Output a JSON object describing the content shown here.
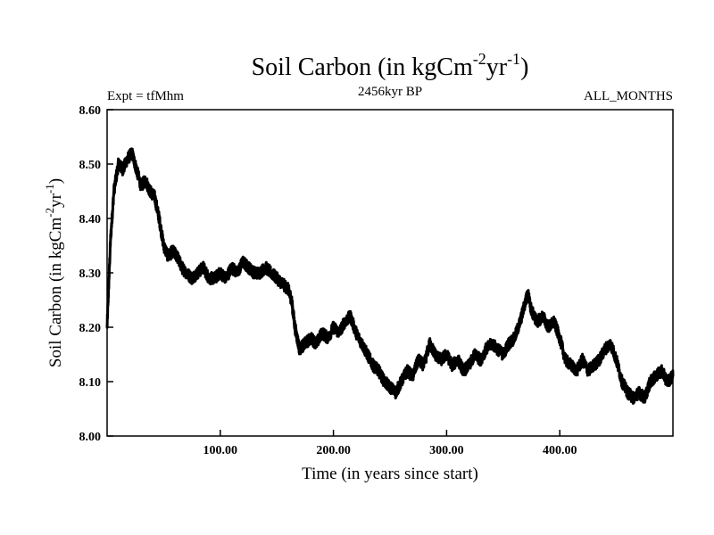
{
  "chart_data": {
    "type": "line",
    "title": {
      "main": "Soil Carbon (in kgCm",
      "exp1": "-2",
      "mid": "yr",
      "exp2": "-1",
      "end": ")"
    },
    "subtitle_left": "Expt = tfMhm",
    "subtitle_center": "2456kyr BP",
    "subtitle_right": "ALL_MONTHS",
    "xlabel": "Time (in years since start)",
    "ylabel": {
      "main": "Soil Carbon (in kgCm",
      "exp1": "-2",
      "mid": "yr",
      "exp2": "-1",
      "end": ")"
    },
    "xlim": [
      0,
      500
    ],
    "ylim": [
      8.0,
      8.6
    ],
    "x_ticks": [
      100,
      200,
      300,
      400
    ],
    "x_tick_labels": [
      "100.00",
      "200.00",
      "300.00",
      "400.00"
    ],
    "y_ticks": [
      8.0,
      8.1,
      8.2,
      8.3,
      8.4,
      8.5,
      8.6
    ],
    "y_tick_labels": [
      "8.00",
      "8.10",
      "8.20",
      "8.30",
      "8.40",
      "8.50",
      "8.60"
    ],
    "grid": false,
    "series": [
      {
        "x": [
          0,
          3,
          6,
          10,
          14,
          18,
          22,
          26,
          30,
          34,
          38,
          42,
          46,
          50,
          54,
          58,
          62,
          66,
          70,
          75,
          80,
          85,
          90,
          95,
          100,
          105,
          110,
          115,
          120,
          125,
          130,
          135,
          140,
          145,
          150,
          155,
          160,
          163,
          166,
          170,
          175,
          180,
          185,
          190,
          195,
          200,
          205,
          210,
          215,
          220,
          225,
          230,
          235,
          240,
          245,
          250,
          255,
          260,
          265,
          270,
          275,
          280,
          285,
          290,
          295,
          300,
          305,
          310,
          315,
          320,
          325,
          330,
          335,
          340,
          345,
          350,
          355,
          360,
          365,
          370,
          372,
          375,
          380,
          385,
          390,
          395,
          400,
          405,
          410,
          415,
          420,
          425,
          430,
          435,
          440,
          445,
          450,
          455,
          460,
          465,
          470,
          475,
          480,
          485,
          490,
          495,
          500
        ],
        "y": [
          8.2,
          8.36,
          8.45,
          8.5,
          8.49,
          8.51,
          8.52,
          8.49,
          8.46,
          8.47,
          8.45,
          8.44,
          8.4,
          8.35,
          8.33,
          8.34,
          8.33,
          8.31,
          8.3,
          8.29,
          8.3,
          8.31,
          8.29,
          8.29,
          8.3,
          8.29,
          8.31,
          8.3,
          8.32,
          8.31,
          8.3,
          8.3,
          8.31,
          8.3,
          8.29,
          8.28,
          8.27,
          8.25,
          8.2,
          8.16,
          8.17,
          8.18,
          8.17,
          8.19,
          8.18,
          8.2,
          8.19,
          8.21,
          8.22,
          8.19,
          8.17,
          8.15,
          8.13,
          8.12,
          8.1,
          8.09,
          8.08,
          8.1,
          8.12,
          8.11,
          8.14,
          8.13,
          8.17,
          8.15,
          8.14,
          8.15,
          8.13,
          8.14,
          8.12,
          8.13,
          8.15,
          8.14,
          8.16,
          8.17,
          8.16,
          8.15,
          8.17,
          8.18,
          8.21,
          8.25,
          8.26,
          8.23,
          8.21,
          8.22,
          8.2,
          8.21,
          8.18,
          8.14,
          8.13,
          8.12,
          8.14,
          8.12,
          8.13,
          8.14,
          8.16,
          8.17,
          8.14,
          8.1,
          8.08,
          8.07,
          8.08,
          8.07,
          8.1,
          8.11,
          8.12,
          8.1,
          8.11
        ]
      }
    ]
  }
}
